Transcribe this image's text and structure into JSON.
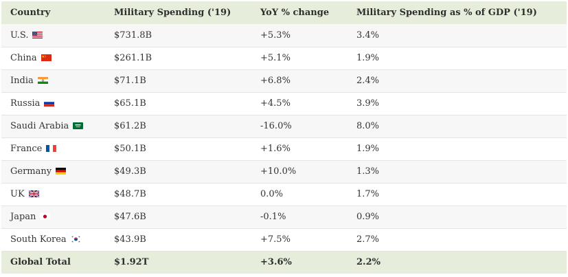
{
  "columns": [
    "Country",
    "Military Spending ('19)",
    "YoY % change",
    "Military Spending as % of GDP ('19)"
  ],
  "rows": [
    {
      "country": "U.S.",
      "flag": "us-flag-icon",
      "spending": "$731.8B",
      "yoy": "+5.3%",
      "gdp": "3.4%"
    },
    {
      "country": "China",
      "flag": "china-flag-icon",
      "spending": "$261.1B",
      "yoy": "+5.1%",
      "gdp": "1.9%"
    },
    {
      "country": "India",
      "flag": "india-flag-icon",
      "spending": "$71.1B",
      "yoy": "+6.8%",
      "gdp": "2.4%"
    },
    {
      "country": "Russia",
      "flag": "russia-flag-icon",
      "spending": "$65.1B",
      "yoy": "+4.5%",
      "gdp": "3.9%"
    },
    {
      "country": "Saudi Arabia",
      "flag": "saudi-arabia-flag-icon",
      "spending": "$61.2B",
      "yoy": "-16.0%",
      "gdp": "8.0%"
    },
    {
      "country": "France",
      "flag": "france-flag-icon",
      "spending": "$50.1B",
      "yoy": "+1.6%",
      "gdp": "1.9%"
    },
    {
      "country": "Germany",
      "flag": "germany-flag-icon",
      "spending": "$49.3B",
      "yoy": "+10.0%",
      "gdp": "1.3%"
    },
    {
      "country": "UK",
      "flag": "uk-flag-icon",
      "spending": "$48.7B",
      "yoy": "0.0%",
      "gdp": "1.7%"
    },
    {
      "country": "Japan",
      "flag": "japan-flag-icon",
      "spending": "$47.6B",
      "yoy": "-0.1%",
      "gdp": "0.9%"
    },
    {
      "country": "South Korea",
      "flag": "south-korea-flag-icon",
      "spending": "$43.9B",
      "yoy": "+7.5%",
      "gdp": "2.7%"
    }
  ],
  "total": {
    "label": "Global Total",
    "spending": "$1.92T",
    "yoy": "+3.6%",
    "gdp": "2.2%"
  },
  "colors": {
    "header_bg": "#e6eedb",
    "stripe_bg": "#f7f7f7",
    "text": "#333333"
  }
}
